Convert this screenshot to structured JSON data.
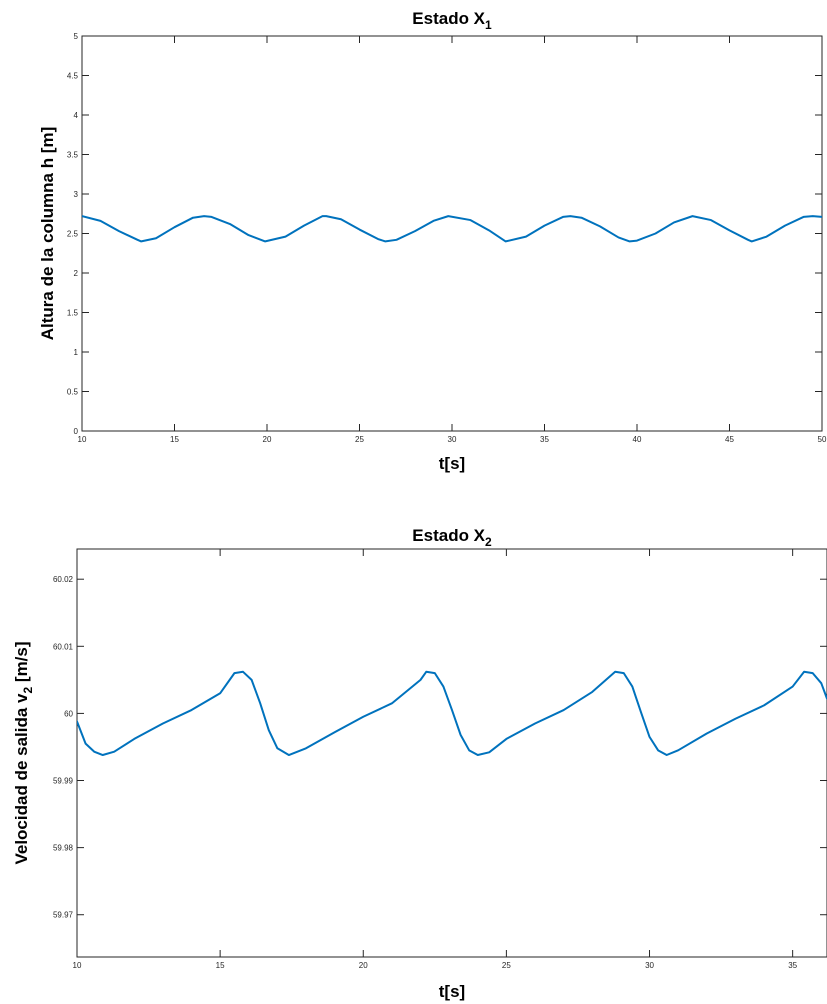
{
  "chart_data": [
    {
      "type": "line",
      "title": "Estado X",
      "title_subscript": "1",
      "xlabel": "t[s]",
      "ylabel": "Altura de la columna h [m]",
      "xlim": [
        10,
        50
      ],
      "ylim": [
        0,
        5
      ],
      "xticks": [
        "10",
        "15",
        "20",
        "25",
        "30",
        "35",
        "40",
        "45",
        "50"
      ],
      "yticks": [
        "0",
        "0.5",
        "1",
        "1.5",
        "2",
        "2.5",
        "3",
        "3.5",
        "4",
        "4.5",
        "5"
      ],
      "grid": false,
      "series": [
        {
          "color": "#0072BD",
          "x": [
            10,
            11,
            12,
            13,
            13.2,
            14,
            15,
            16,
            16.6,
            17,
            18,
            19,
            19.9,
            21,
            22,
            23,
            23.2,
            24,
            25,
            26,
            26.4,
            27,
            28,
            29,
            29.8,
            31,
            32,
            32.9,
            34,
            35,
            36,
            36.4,
            37,
            38,
            39,
            39.6,
            40,
            41,
            42,
            43,
            44,
            45,
            46,
            46.2,
            47,
            48,
            49,
            49.5,
            50
          ],
          "y": [
            2.72,
            2.66,
            2.53,
            2.42,
            2.4,
            2.44,
            2.58,
            2.7,
            2.72,
            2.71,
            2.62,
            2.48,
            2.4,
            2.46,
            2.6,
            2.72,
            2.72,
            2.68,
            2.55,
            2.43,
            2.4,
            2.42,
            2.53,
            2.66,
            2.72,
            2.67,
            2.54,
            2.4,
            2.46,
            2.6,
            2.71,
            2.72,
            2.7,
            2.59,
            2.45,
            2.4,
            2.41,
            2.5,
            2.64,
            2.72,
            2.67,
            2.54,
            2.42,
            2.4,
            2.46,
            2.6,
            2.71,
            2.72,
            2.71
          ]
        }
      ]
    },
    {
      "type": "line",
      "title": "Estado X",
      "title_subscript": "2",
      "xlabel": "t[s]",
      "ylabel": "Velocidad de salida v",
      "ylabel_subscript": "2",
      "ylabel_suffix": " [m/s]",
      "xlim": [
        10,
        36.2
      ],
      "ylim": [
        59.9637,
        60.0245
      ],
      "xticks": [
        "10",
        "15",
        "20",
        "25",
        "30",
        "35"
      ],
      "yticks": [
        "59.97",
        "59.98",
        "59.99",
        "60",
        "60.01",
        "60.02"
      ],
      "grid": false,
      "series": [
        {
          "color": "#0072BD",
          "x": [
            10,
            10.3,
            10.6,
            10.9,
            11.3,
            12,
            13,
            14,
            15,
            15.5,
            15.8,
            16.1,
            16.4,
            16.7,
            17.0,
            17.4,
            18,
            19,
            20,
            21,
            22,
            22.2,
            22.5,
            22.8,
            23.1,
            23.4,
            23.7,
            24.0,
            24.4,
            25,
            26,
            27,
            28,
            28.8,
            29.1,
            29.4,
            29.7,
            30.0,
            30.3,
            30.6,
            31,
            32,
            33,
            34,
            35,
            35.4,
            35.7,
            36.0,
            36.2
          ],
          "y": [
            59.9988,
            59.9955,
            59.9943,
            59.9938,
            59.9943,
            59.9962,
            59.9985,
            60.0005,
            60.003,
            60.006,
            60.0062,
            60.005,
            60.0015,
            59.9975,
            59.9948,
            59.9938,
            59.9948,
            59.9972,
            59.9995,
            60.0015,
            60.005,
            60.0062,
            60.006,
            60.004,
            60.0005,
            59.9968,
            59.9945,
            59.9938,
            59.9942,
            59.9962,
            59.9985,
            60.0005,
            60.0032,
            60.0062,
            60.006,
            60.004,
            60.0002,
            59.9965,
            59.9945,
            59.9938,
            59.9945,
            59.997,
            59.9992,
            60.0012,
            60.004,
            60.0062,
            60.006,
            60.0045,
            60.0022
          ]
        }
      ]
    }
  ]
}
